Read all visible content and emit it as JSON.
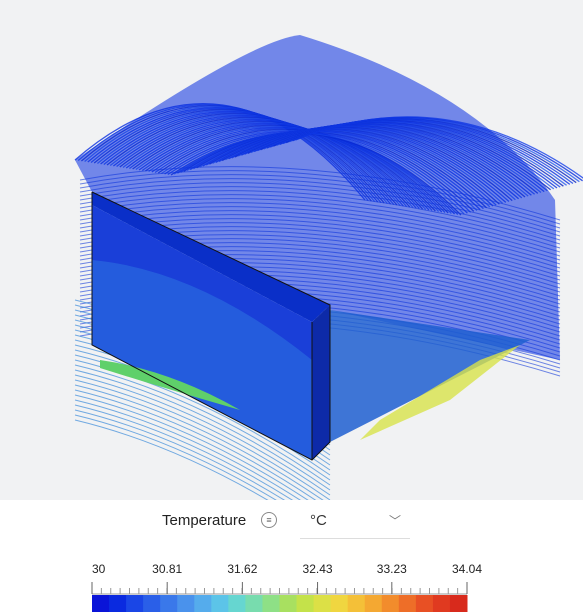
{
  "legend": {
    "title": "Temperature",
    "unit": "°C",
    "ticks": [
      30,
      30.81,
      31.62,
      32.43,
      33.23,
      34.04
    ]
  }
}
